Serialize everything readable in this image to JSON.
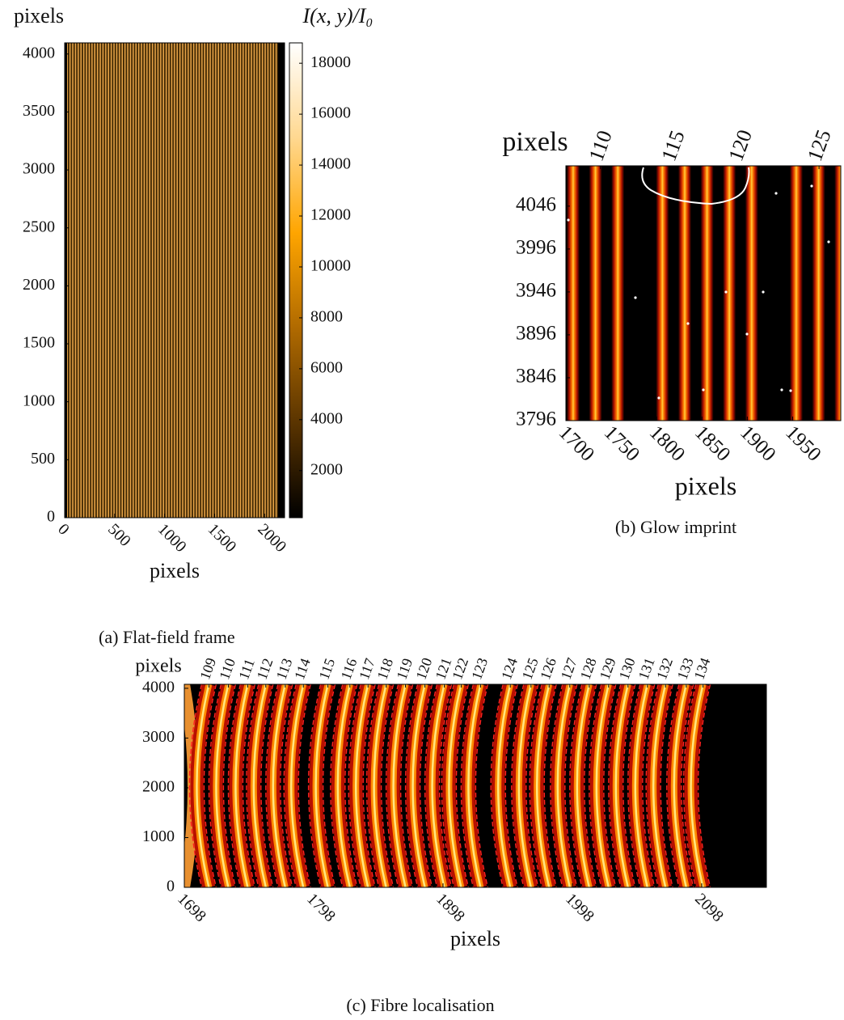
{
  "chart_data": [
    {
      "type": "heatmap",
      "caption": "(a) Flat-field frame",
      "xlabel": "pixels",
      "ylabel": "pixels",
      "xlim": [
        0,
        2200
      ],
      "ylim": [
        0,
        4096
      ],
      "xticks": [
        0,
        500,
        1000,
        1500,
        2000
      ],
      "yticks": [
        0,
        500,
        1000,
        1500,
        2000,
        2500,
        3000,
        3500,
        4000
      ],
      "colorbar": {
        "label": "I(x, y)/I₀",
        "lim": [
          150,
          18800
        ],
        "ticks": [
          2000,
          4000,
          6000,
          8000,
          10000,
          12000,
          14000,
          16000,
          18000
        ],
        "colors": [
          "#000000",
          "#5a3400",
          "#b06a00",
          "#ffa500",
          "#ffd890",
          "#ffffff"
        ]
      }
    },
    {
      "type": "heatmap",
      "caption": "(b) Glow imprint",
      "xlabel": "pixels",
      "ylabel": "pixels",
      "xlim": [
        1700,
        2003
      ],
      "ylim": [
        3796,
        4093
      ],
      "xticks": [
        1700,
        1750,
        1800,
        1850,
        1900,
        1950
      ],
      "yticks": [
        3796,
        3846,
        3896,
        3946,
        3996,
        4046
      ],
      "x2ticks": [
        {
          "value": 1738,
          "label": "110"
        },
        {
          "value": 1818,
          "label": "115"
        },
        {
          "value": 1892,
          "label": "120"
        },
        {
          "value": 1979,
          "label": "125"
        }
      ]
    },
    {
      "type": "heatmap",
      "caption": "(c) Fibre localisation",
      "xlabel": "pixels",
      "ylabel": "pixels",
      "xlim": [
        1698,
        2148
      ],
      "ylim": [
        0,
        4080
      ],
      "xticks": [
        1698,
        1798,
        1898,
        1998,
        2098
      ],
      "yticks": [
        0,
        1000,
        2000,
        3000,
        4000
      ],
      "x2ticks": [
        {
          "value": 1717,
          "label": "109"
        },
        {
          "value": 1732,
          "label": "110"
        },
        {
          "value": 1747,
          "label": "111"
        },
        {
          "value": 1761,
          "label": "112"
        },
        {
          "value": 1776,
          "label": "113"
        },
        {
          "value": 1790,
          "label": "114"
        },
        {
          "value": 1809,
          "label": "115"
        },
        {
          "value": 1826,
          "label": "116"
        },
        {
          "value": 1840,
          "label": "117"
        },
        {
          "value": 1854,
          "label": "118"
        },
        {
          "value": 1869,
          "label": "119"
        },
        {
          "value": 1884,
          "label": "120"
        },
        {
          "value": 1899,
          "label": "121"
        },
        {
          "value": 1912,
          "label": "122"
        },
        {
          "value": 1927,
          "label": "123"
        },
        {
          "value": 1950,
          "label": "124"
        },
        {
          "value": 1966,
          "label": "125"
        },
        {
          "value": 1980,
          "label": "126"
        },
        {
          "value": 1996,
          "label": "127"
        },
        {
          "value": 2011,
          "label": "128"
        },
        {
          "value": 2026,
          "label": "129"
        },
        {
          "value": 2041,
          "label": "130"
        },
        {
          "value": 2056,
          "label": "131"
        },
        {
          "value": 2070,
          "label": "132"
        },
        {
          "value": 2086,
          "label": "133"
        },
        {
          "value": 2099,
          "label": "134"
        }
      ]
    }
  ]
}
